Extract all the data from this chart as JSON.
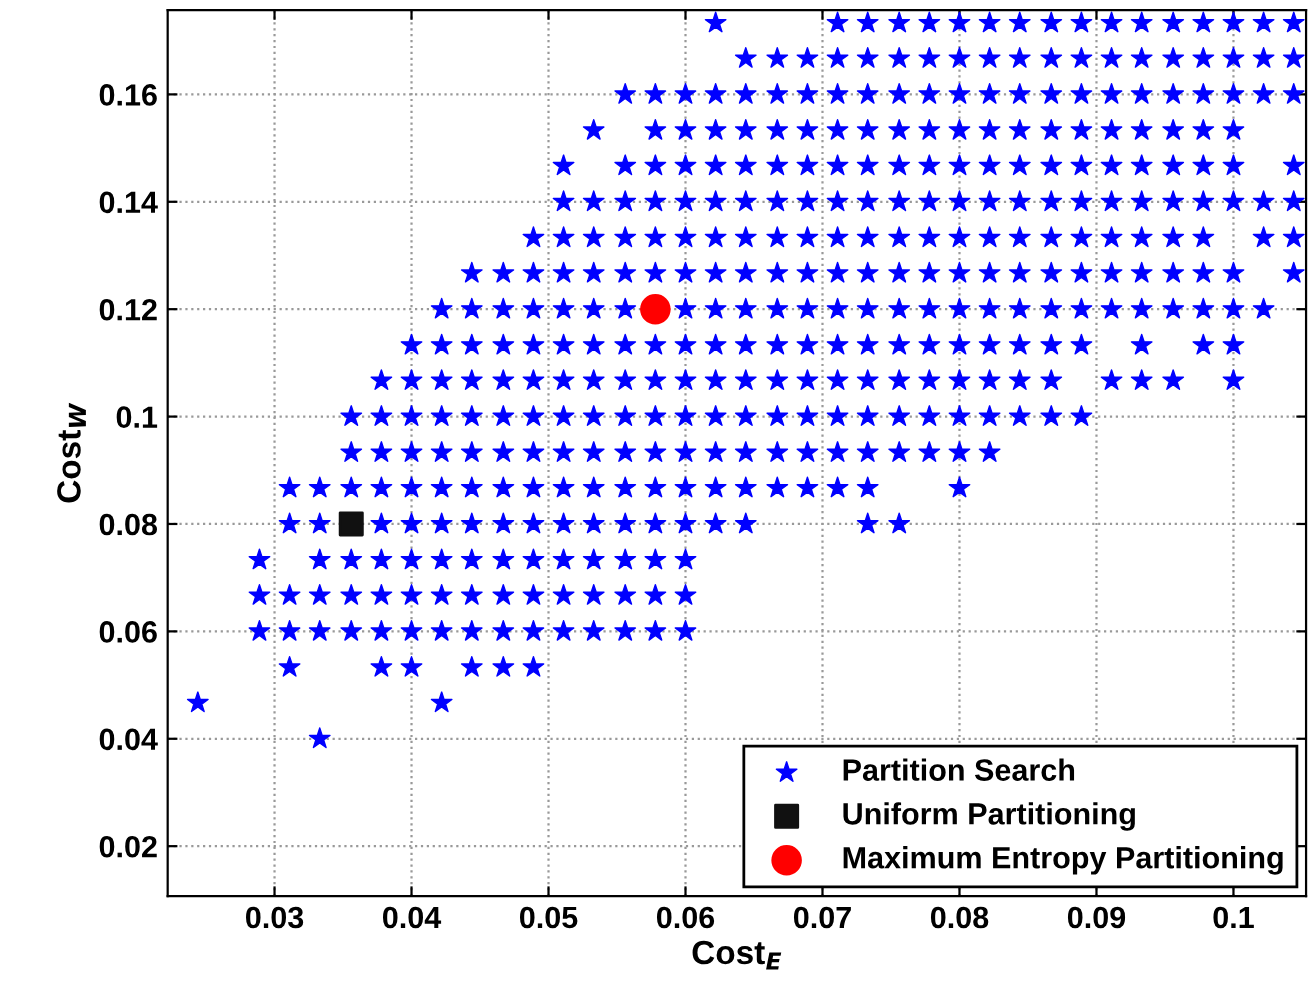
{
  "chart_data": {
    "type": "scatter",
    "xlabel": "Cost$_{E}$",
    "ylabel": "Cost$_{W}$",
    "xlim": [
      0.0222,
      0.1053
    ],
    "ylim": [
      0.0107,
      0.1757
    ],
    "xticks": [
      0.03,
      0.04,
      0.05,
      0.06,
      0.07,
      0.08,
      0.09,
      {
        "value": 0.1,
        "label": "0.1"
      }
    ],
    "yticks": [
      0.02,
      0.04,
      0.06,
      0.08,
      {
        "value": 0.1,
        "label": "0.1"
      },
      0.12,
      0.14,
      0.16
    ],
    "grid": true,
    "legend": "bottom right",
    "series": [
      {
        "name": "Partition Search",
        "color": "#0000ff",
        "marker": "star",
        "x": [
          0.0333,
          0.0244,
          0.0422,
          0.0311,
          0.0378,
          0.04,
          0.0444,
          0.0467,
          0.0489,
          0.0289,
          0.0311,
          0.0333,
          0.0356,
          0.0378,
          0.04,
          0.0422,
          0.0444,
          0.0467,
          0.0489,
          0.0511,
          0.0533,
          0.0556,
          0.0578,
          0.06,
          0.0289,
          0.0311,
          0.0333,
          0.0356,
          0.0378,
          0.04,
          0.0422,
          0.0444,
          0.0467,
          0.0489,
          0.0511,
          0.0533,
          0.0556,
          0.0578,
          0.06,
          0.0289,
          0.0333,
          0.0356,
          0.0378,
          0.04,
          0.0422,
          0.0444,
          0.0467,
          0.0489,
          0.0511,
          0.0533,
          0.0556,
          0.0578,
          0.06,
          0.0311,
          0.0333,
          0.0378,
          0.04,
          0.0422,
          0.0444,
          0.0467,
          0.0489,
          0.0511,
          0.0533,
          0.0556,
          0.0578,
          0.06,
          0.0622,
          0.0644,
          0.0733,
          0.0756,
          0.0311,
          0.0333,
          0.0356,
          0.0378,
          0.04,
          0.0422,
          0.0444,
          0.0467,
          0.0489,
          0.0511,
          0.0533,
          0.0556,
          0.0578,
          0.06,
          0.0622,
          0.0644,
          0.0667,
          0.0689,
          0.0711,
          0.0733,
          0.08,
          0.0356,
          0.0378,
          0.04,
          0.0422,
          0.0444,
          0.0467,
          0.0489,
          0.0511,
          0.0533,
          0.0556,
          0.0578,
          0.06,
          0.0622,
          0.0644,
          0.0667,
          0.0689,
          0.0711,
          0.0733,
          0.0756,
          0.0778,
          0.08,
          0.0822,
          0.0356,
          0.0378,
          0.04,
          0.0422,
          0.0444,
          0.0467,
          0.0489,
          0.0511,
          0.0533,
          0.0556,
          0.0578,
          0.06,
          0.0622,
          0.0644,
          0.0667,
          0.0689,
          0.0711,
          0.0733,
          0.0756,
          0.0778,
          0.08,
          0.0822,
          0.0844,
          0.0867,
          0.0889,
          0.0378,
          0.04,
          0.0422,
          0.0444,
          0.0467,
          0.0489,
          0.0511,
          0.0533,
          0.0556,
          0.0578,
          0.06,
          0.0622,
          0.0644,
          0.0667,
          0.0689,
          0.0711,
          0.0733,
          0.0756,
          0.0778,
          0.08,
          0.0822,
          0.0844,
          0.0867,
          0.0911,
          0.0933,
          0.0956,
          0.1,
          0.04,
          0.0422,
          0.0444,
          0.0467,
          0.0489,
          0.0511,
          0.0533,
          0.0556,
          0.0578,
          0.06,
          0.0622,
          0.0644,
          0.0667,
          0.0689,
          0.0711,
          0.0733,
          0.0756,
          0.0778,
          0.08,
          0.0822,
          0.0844,
          0.0867,
          0.0889,
          0.0933,
          0.0978,
          0.1,
          0.0422,
          0.0444,
          0.0467,
          0.0489,
          0.0511,
          0.0533,
          0.0556,
          0.06,
          0.0622,
          0.0644,
          0.0667,
          0.0689,
          0.0711,
          0.0733,
          0.0756,
          0.0778,
          0.08,
          0.0822,
          0.0844,
          0.0867,
          0.0889,
          0.0911,
          0.0933,
          0.0956,
          0.0978,
          0.1,
          0.1022,
          0.0444,
          0.0467,
          0.0489,
          0.0511,
          0.0533,
          0.0556,
          0.0578,
          0.06,
          0.0622,
          0.0644,
          0.0667,
          0.0689,
          0.0711,
          0.0733,
          0.0756,
          0.0778,
          0.08,
          0.0822,
          0.0844,
          0.0867,
          0.0889,
          0.0911,
          0.0933,
          0.0956,
          0.0978,
          0.1,
          0.1044,
          0.0489,
          0.0511,
          0.0533,
          0.0556,
          0.0578,
          0.06,
          0.0622,
          0.0644,
          0.0667,
          0.0689,
          0.0711,
          0.0733,
          0.0756,
          0.0778,
          0.08,
          0.0822,
          0.0844,
          0.0867,
          0.0889,
          0.0911,
          0.0933,
          0.0956,
          0.0978,
          0.1022,
          0.1044,
          0.0511,
          0.0533,
          0.0556,
          0.0578,
          0.06,
          0.0622,
          0.0644,
          0.0667,
          0.0689,
          0.0711,
          0.0733,
          0.0756,
          0.0778,
          0.08,
          0.0822,
          0.0844,
          0.0867,
          0.0889,
          0.0911,
          0.0933,
          0.0956,
          0.0978,
          0.1,
          0.1022,
          0.1044,
          0.0511,
          0.0556,
          0.0578,
          0.06,
          0.0622,
          0.0644,
          0.0667,
          0.0689,
          0.0711,
          0.0733,
          0.0756,
          0.0778,
          0.08,
          0.0822,
          0.0844,
          0.0867,
          0.0889,
          0.0911,
          0.0933,
          0.0956,
          0.0978,
          0.1,
          0.1044,
          0.0533,
          0.0578,
          0.06,
          0.0622,
          0.0644,
          0.0667,
          0.0689,
          0.0711,
          0.0733,
          0.0756,
          0.0778,
          0.08,
          0.0822,
          0.0844,
          0.0867,
          0.0889,
          0.0911,
          0.0933,
          0.0956,
          0.0978,
          0.1,
          0.0556,
          0.0578,
          0.06,
          0.0622,
          0.0644,
          0.0667,
          0.0689,
          0.0711,
          0.0733,
          0.0756,
          0.0778,
          0.08,
          0.0822,
          0.0844,
          0.0867,
          0.0889,
          0.0911,
          0.0933,
          0.0956,
          0.0978,
          0.1,
          0.1022,
          0.1044,
          0.0644,
          0.0667,
          0.0689,
          0.0711,
          0.0733,
          0.0756,
          0.0778,
          0.08,
          0.0822,
          0.0844,
          0.0867,
          0.0889,
          0.0911,
          0.0933,
          0.0956,
          0.0978,
          0.1,
          0.1022,
          0.1044,
          0.0622,
          0.0711,
          0.0733,
          0.0756,
          0.0778,
          0.08,
          0.0822,
          0.0844,
          0.0867,
          0.0889,
          0.0911,
          0.0933,
          0.0956,
          0.0978,
          0.1,
          0.1022,
          0.1044
        ],
        "values": [
          0.04,
          0.0467,
          0.0467,
          0.0533,
          0.0533,
          0.0533,
          0.0533,
          0.0533,
          0.0533,
          0.06,
          0.06,
          0.06,
          0.06,
          0.06,
          0.06,
          0.06,
          0.06,
          0.06,
          0.06,
          0.06,
          0.06,
          0.06,
          0.06,
          0.06,
          0.0667,
          0.0667,
          0.0667,
          0.0667,
          0.0667,
          0.0667,
          0.0667,
          0.0667,
          0.0667,
          0.0667,
          0.0667,
          0.0667,
          0.0667,
          0.0667,
          0.0667,
          0.0733,
          0.0733,
          0.0733,
          0.0733,
          0.0733,
          0.0733,
          0.0733,
          0.0733,
          0.0733,
          0.0733,
          0.0733,
          0.0733,
          0.0733,
          0.0733,
          0.08,
          0.08,
          0.08,
          0.08,
          0.08,
          0.08,
          0.08,
          0.08,
          0.08,
          0.08,
          0.08,
          0.08,
          0.08,
          0.08,
          0.08,
          0.08,
          0.08,
          0.0867,
          0.0867,
          0.0867,
          0.0867,
          0.0867,
          0.0867,
          0.0867,
          0.0867,
          0.0867,
          0.0867,
          0.0867,
          0.0867,
          0.0867,
          0.0867,
          0.0867,
          0.0867,
          0.0867,
          0.0867,
          0.0867,
          0.0867,
          0.0867,
          0.0933,
          0.0933,
          0.0933,
          0.0933,
          0.0933,
          0.0933,
          0.0933,
          0.0933,
          0.0933,
          0.0933,
          0.0933,
          0.0933,
          0.0933,
          0.0933,
          0.0933,
          0.0933,
          0.0933,
          0.0933,
          0.0933,
          0.0933,
          0.0933,
          0.0933,
          0.1,
          0.1,
          0.1,
          0.1,
          0.1,
          0.1,
          0.1,
          0.1,
          0.1,
          0.1,
          0.1,
          0.1,
          0.1,
          0.1,
          0.1,
          0.1,
          0.1,
          0.1,
          0.1,
          0.1,
          0.1,
          0.1,
          0.1,
          0.1,
          0.1,
          0.1067,
          0.1067,
          0.1067,
          0.1067,
          0.1067,
          0.1067,
          0.1067,
          0.1067,
          0.1067,
          0.1067,
          0.1067,
          0.1067,
          0.1067,
          0.1067,
          0.1067,
          0.1067,
          0.1067,
          0.1067,
          0.1067,
          0.1067,
          0.1067,
          0.1067,
          0.1067,
          0.1067,
          0.1067,
          0.1067,
          0.1067,
          0.1133,
          0.1133,
          0.1133,
          0.1133,
          0.1133,
          0.1133,
          0.1133,
          0.1133,
          0.1133,
          0.1133,
          0.1133,
          0.1133,
          0.1133,
          0.1133,
          0.1133,
          0.1133,
          0.1133,
          0.1133,
          0.1133,
          0.1133,
          0.1133,
          0.1133,
          0.1133,
          0.1133,
          0.1133,
          0.1133,
          0.12,
          0.12,
          0.12,
          0.12,
          0.12,
          0.12,
          0.12,
          0.12,
          0.12,
          0.12,
          0.12,
          0.12,
          0.12,
          0.12,
          0.12,
          0.12,
          0.12,
          0.12,
          0.12,
          0.12,
          0.12,
          0.12,
          0.12,
          0.12,
          0.12,
          0.12,
          0.12,
          0.1267,
          0.1267,
          0.1267,
          0.1267,
          0.1267,
          0.1267,
          0.1267,
          0.1267,
          0.1267,
          0.1267,
          0.1267,
          0.1267,
          0.1267,
          0.1267,
          0.1267,
          0.1267,
          0.1267,
          0.1267,
          0.1267,
          0.1267,
          0.1267,
          0.1267,
          0.1267,
          0.1267,
          0.1267,
          0.1267,
          0.1267,
          0.1333,
          0.1333,
          0.1333,
          0.1333,
          0.1333,
          0.1333,
          0.1333,
          0.1333,
          0.1333,
          0.1333,
          0.1333,
          0.1333,
          0.1333,
          0.1333,
          0.1333,
          0.1333,
          0.1333,
          0.1333,
          0.1333,
          0.1333,
          0.1333,
          0.1333,
          0.1333,
          0.1333,
          0.1333,
          0.14,
          0.14,
          0.14,
          0.14,
          0.14,
          0.14,
          0.14,
          0.14,
          0.14,
          0.14,
          0.14,
          0.14,
          0.14,
          0.14,
          0.14,
          0.14,
          0.14,
          0.14,
          0.14,
          0.14,
          0.14,
          0.14,
          0.14,
          0.14,
          0.14,
          0.1467,
          0.1467,
          0.1467,
          0.1467,
          0.1467,
          0.1467,
          0.1467,
          0.1467,
          0.1467,
          0.1467,
          0.1467,
          0.1467,
          0.1467,
          0.1467,
          0.1467,
          0.1467,
          0.1467,
          0.1467,
          0.1467,
          0.1467,
          0.1467,
          0.1467,
          0.1467,
          0.1533,
          0.1533,
          0.1533,
          0.1533,
          0.1533,
          0.1533,
          0.1533,
          0.1533,
          0.1533,
          0.1533,
          0.1533,
          0.1533,
          0.1533,
          0.1533,
          0.1533,
          0.1533,
          0.1533,
          0.1533,
          0.1533,
          0.1533,
          0.1533,
          0.16,
          0.16,
          0.16,
          0.16,
          0.16,
          0.16,
          0.16,
          0.16,
          0.16,
          0.16,
          0.16,
          0.16,
          0.16,
          0.16,
          0.16,
          0.16,
          0.16,
          0.16,
          0.16,
          0.16,
          0.16,
          0.16,
          0.16,
          0.1667,
          0.1667,
          0.1667,
          0.1667,
          0.1667,
          0.1667,
          0.1667,
          0.1667,
          0.1667,
          0.1667,
          0.1667,
          0.1667,
          0.1667,
          0.1667,
          0.1667,
          0.1667,
          0.1667,
          0.1667,
          0.1667,
          0.1733,
          0.1733,
          0.1733,
          0.1733,
          0.1733,
          0.1733,
          0.1733,
          0.1733,
          0.1733,
          0.1733,
          0.1733,
          0.1733,
          0.1733,
          0.1733,
          0.1733,
          0.1733,
          0.1733
        ]
      },
      {
        "name": "Uniform Partitioning",
        "color": "#111111",
        "marker": "square",
        "x": [
          0.0356
        ],
        "values": [
          0.08
        ]
      },
      {
        "name": "Maximum Entropy Partitioning",
        "color": "#ff0000",
        "marker": "circle",
        "x": [
          0.0578
        ],
        "values": [
          0.12
        ]
      }
    ]
  }
}
